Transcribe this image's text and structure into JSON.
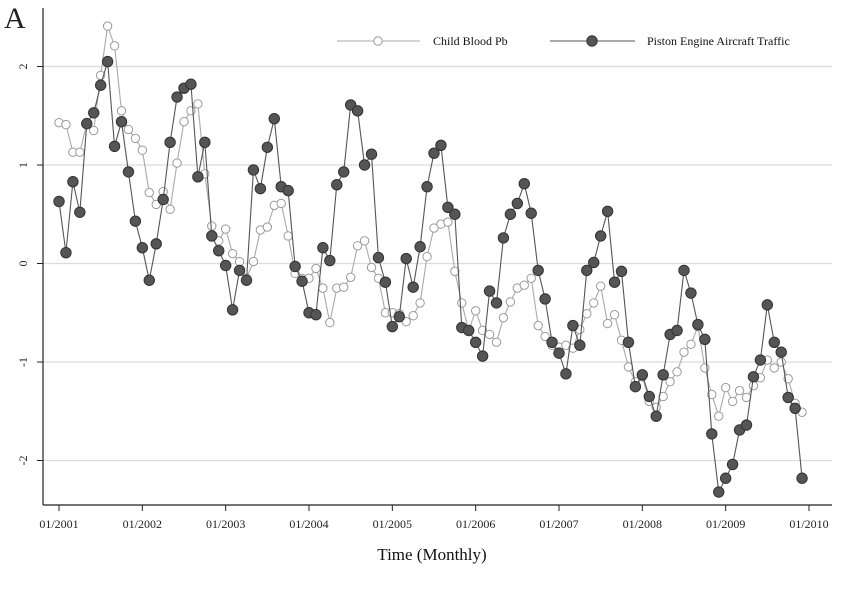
{
  "chart_data": {
    "type": "line",
    "panel_label": "A",
    "title": "",
    "xlabel": "Time (Monthly)",
    "ylabel": "",
    "ylim": [
      -2.45,
      2.6
    ],
    "yticks": [
      -2,
      -1,
      0,
      1,
      2
    ],
    "grid": true,
    "legend_position": "top-right",
    "x_start": "01/2001",
    "x_end": "12/2009",
    "x_ticks": [
      "01/2001",
      "01/2002",
      "01/2003",
      "01/2004",
      "01/2005",
      "01/2006",
      "01/2007",
      "01/2008",
      "01/2009",
      "01/2010"
    ],
    "colors": {
      "grid": "#dcdcdc",
      "axis": "#222222",
      "series_child": "#aaaaaa",
      "series_piston": "#555555"
    },
    "series": [
      {
        "name": "Child Blood Pb",
        "marker": "hollow-circle",
        "values": [
          1.43,
          1.41,
          1.13,
          1.13,
          1.42,
          1.35,
          1.91,
          2.41,
          2.21,
          1.55,
          1.36,
          1.27,
          1.15,
          0.72,
          0.6,
          0.73,
          0.55,
          1.02,
          1.44,
          1.55,
          1.62,
          0.91,
          0.38,
          0.23,
          0.35,
          0.1,
          0.02,
          -0.15,
          0.02,
          0.34,
          0.37,
          0.59,
          0.61,
          0.28,
          -0.1,
          -0.15,
          -0.15,
          -0.05,
          -0.25,
          -0.6,
          -0.25,
          -0.24,
          -0.14,
          0.18,
          0.23,
          -0.04,
          -0.15,
          -0.5,
          -0.5,
          -0.51,
          -0.59,
          -0.53,
          -0.4,
          0.07,
          0.36,
          0.4,
          0.42,
          -0.08,
          -0.4,
          -0.68,
          -0.48,
          -0.68,
          -0.72,
          -0.8,
          -0.55,
          -0.39,
          -0.25,
          -0.22,
          -0.15,
          -0.63,
          -0.74,
          -0.83,
          -0.85,
          -0.83,
          -0.86,
          -0.67,
          -0.51,
          -0.4,
          -0.23,
          -0.61,
          -0.52,
          -0.78,
          -1.05,
          -1.2,
          -1.15,
          -1.4,
          -1.46,
          -1.35,
          -1.2,
          -1.1,
          -0.9,
          -0.82,
          -0.64,
          -1.06,
          -1.33,
          -1.55,
          -1.26,
          -1.4,
          -1.29,
          -1.36,
          -1.24,
          -1.16,
          -0.98,
          -1.06,
          -1.0,
          -1.17,
          -1.42,
          -1.51
        ]
      },
      {
        "name": "Piston Engine Aircraft Traffic",
        "marker": "filled-circle",
        "values": [
          0.63,
          0.11,
          0.83,
          0.52,
          1.42,
          1.53,
          1.81,
          2.05,
          1.19,
          1.44,
          0.93,
          0.43,
          0.16,
          -0.17,
          0.2,
          0.65,
          1.23,
          1.69,
          1.78,
          1.82,
          0.88,
          1.23,
          0.28,
          0.13,
          -0.02,
          -0.47,
          -0.07,
          -0.17,
          0.95,
          0.76,
          1.18,
          1.47,
          0.78,
          0.74,
          -0.03,
          -0.18,
          -0.5,
          -0.52,
          0.16,
          0.03,
          0.8,
          0.93,
          1.61,
          1.55,
          1.0,
          1.11,
          0.06,
          -0.19,
          -0.64,
          -0.54,
          0.05,
          -0.24,
          0.17,
          0.78,
          1.12,
          1.2,
          0.57,
          0.5,
          -0.65,
          -0.68,
          -0.8,
          -0.94,
          -0.28,
          -0.4,
          0.26,
          0.5,
          0.61,
          0.81,
          0.51,
          -0.07,
          -0.36,
          -0.8,
          -0.91,
          -1.12,
          -0.63,
          -0.83,
          -0.07,
          0.01,
          0.28,
          0.53,
          -0.19,
          -0.08,
          -0.8,
          -1.25,
          -1.13,
          -1.35,
          -1.55,
          -1.13,
          -0.72,
          -0.68,
          -0.07,
          -0.3,
          -0.62,
          -0.77,
          -1.73,
          -2.32,
          -2.18,
          -2.04,
          -1.69,
          -1.64,
          -1.15,
          -0.98,
          -0.42,
          -0.8,
          -0.9,
          -1.36,
          -1.47,
          -2.18
        ]
      }
    ]
  }
}
